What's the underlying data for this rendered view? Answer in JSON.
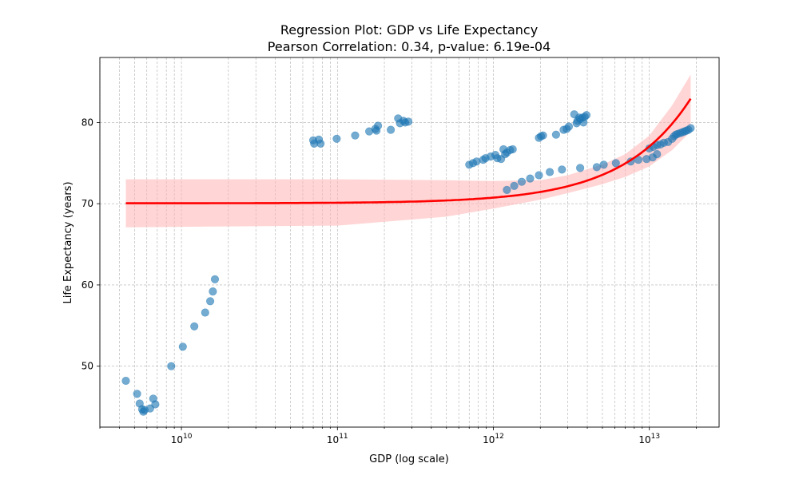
{
  "chart_data": {
    "type": "scatter",
    "title": "Regression Plot: GDP vs Life Expectancy",
    "subtitle": "Pearson Correlation: 0.34, p-value: 6.19e-04",
    "xlabel": "GDP (log scale)",
    "ylabel": "Life Expectancy (years)",
    "x_scale": "log",
    "xlim": [
      3000000000.0,
      28000000000000.0
    ],
    "ylim": [
      42.5,
      88
    ],
    "x_ticks": [
      {
        "value": 10000000000.0,
        "base": "10",
        "exp": "10"
      },
      {
        "value": 100000000000.0,
        "base": "10",
        "exp": "11"
      },
      {
        "value": 1000000000000.0,
        "base": "10",
        "exp": "12"
      },
      {
        "value": 10000000000000.0,
        "base": "10",
        "exp": "13"
      }
    ],
    "y_ticks": [
      {
        "value": 50,
        "label": "50"
      },
      {
        "value": 60,
        "label": "60"
      },
      {
        "value": 70,
        "label": "70"
      },
      {
        "value": 80,
        "label": "80"
      }
    ],
    "grid": true,
    "colors": {
      "points": "#1f77b4",
      "line": "#ff0000",
      "band": "#ffb3b3",
      "grid": "#b0b0b0"
    },
    "points": [
      [
        4400000000.0,
        48.2
      ],
      [
        5200000000.0,
        46.6
      ],
      [
        5400000000.0,
        45.4
      ],
      [
        5600000000.0,
        44.7
      ],
      [
        5700000000.0,
        44.4
      ],
      [
        5800000000.0,
        44.6
      ],
      [
        6300000000.0,
        44.8
      ],
      [
        6600000000.0,
        46.0
      ],
      [
        6800000000.0,
        45.3
      ],
      [
        8600000000.0,
        50.0
      ],
      [
        10200000000.0,
        52.4
      ],
      [
        12100000000.0,
        54.9
      ],
      [
        14200000000.0,
        56.6
      ],
      [
        15300000000.0,
        58.0
      ],
      [
        15900000000.0,
        59.2
      ],
      [
        16400000000.0,
        60.7
      ],
      [
        70000000000.0,
        77.8
      ],
      [
        71000000000.0,
        77.4
      ],
      [
        76000000000.0,
        77.9
      ],
      [
        78000000000.0,
        77.4
      ],
      [
        99000000000.0,
        78.0
      ],
      [
        130000000000.0,
        78.4
      ],
      [
        160000000000.0,
        78.9
      ],
      [
        175000000000.0,
        79.2
      ],
      [
        178000000000.0,
        79.0
      ],
      [
        182000000000.0,
        79.6
      ],
      [
        220000000000.0,
        79.1
      ],
      [
        245000000000.0,
        80.5
      ],
      [
        252000000000.0,
        79.9
      ],
      [
        265000000000.0,
        80.2
      ],
      [
        272000000000.0,
        80.0
      ],
      [
        285000000000.0,
        80.1
      ],
      [
        700000000000.0,
        74.8
      ],
      [
        740000000000.0,
        75.0
      ],
      [
        780000000000.0,
        75.2
      ],
      [
        860000000000.0,
        75.4
      ],
      [
        890000000000.0,
        75.6
      ],
      [
        960000000000.0,
        75.8
      ],
      [
        1030000000000.0,
        76.0
      ],
      [
        1060000000000.0,
        75.6
      ],
      [
        1120000000000.0,
        75.5
      ],
      [
        1160000000000.0,
        76.7
      ],
      [
        1190000000000.0,
        76.1
      ],
      [
        1220000000000.0,
        76.3
      ],
      [
        1280000000000.0,
        76.6
      ],
      [
        1330000000000.0,
        76.7
      ],
      [
        1220000000000.0,
        71.7
      ],
      [
        1360000000000.0,
        72.2
      ],
      [
        1520000000000.0,
        72.7
      ],
      [
        1720000000000.0,
        73.1
      ],
      [
        1960000000000.0,
        73.5
      ],
      [
        2300000000000.0,
        73.9
      ],
      [
        2750000000000.0,
        74.2
      ],
      [
        3600000000000.0,
        74.4
      ],
      [
        4600000000000.0,
        74.5
      ],
      [
        5100000000000.0,
        74.8
      ],
      [
        6100000000000.0,
        75.0
      ],
      [
        7600000000000.0,
        75.2
      ],
      [
        8500000000000.0,
        75.4
      ],
      [
        9600000000000.0,
        75.5
      ],
      [
        10500000000000.0,
        75.7
      ],
      [
        11200000000000.0,
        76.1
      ],
      [
        1960000000000.0,
        78.1
      ],
      [
        2020000000000.0,
        78.3
      ],
      [
        2080000000000.0,
        78.4
      ],
      [
        2520000000000.0,
        78.5
      ],
      [
        2820000000000.0,
        79.1
      ],
      [
        2950000000000.0,
        79.2
      ],
      [
        3050000000000.0,
        79.5
      ],
      [
        3300000000000.0,
        81.0
      ],
      [
        3420000000000.0,
        79.9
      ],
      [
        3460000000000.0,
        80.2
      ],
      [
        3550000000000.0,
        80.6
      ],
      [
        3600000000000.0,
        80.4
      ],
      [
        3720000000000.0,
        80.6
      ],
      [
        3780000000000.0,
        80.0
      ],
      [
        3850000000000.0,
        80.7
      ],
      [
        3950000000000.0,
        80.9
      ],
      [
        10000000000000.0,
        76.8
      ],
      [
        10600000000000.0,
        77.0
      ],
      [
        11200000000000.0,
        77.2
      ],
      [
        11800000000000.0,
        77.3
      ],
      [
        12400000000000.0,
        77.5
      ],
      [
        13200000000000.0,
        77.6
      ],
      [
        14000000000000.0,
        78.0
      ],
      [
        14400000000000.0,
        78.3
      ],
      [
        14800000000000.0,
        78.5
      ],
      [
        15200000000000.0,
        78.6
      ],
      [
        15800000000000.0,
        78.7
      ],
      [
        16300000000000.0,
        78.8
      ],
      [
        16800000000000.0,
        78.9
      ],
      [
        17300000000000.0,
        79.0
      ],
      [
        17800000000000.0,
        79.1
      ],
      [
        18400000000000.0,
        79.3
      ]
    ],
    "regression_line": {
      "x_range": [
        4400000000.0,
        18400000000000.0
      ],
      "intercept": 70.05,
      "slope": 7e-13
    },
    "confidence_band": [
      [
        4400000000.0,
        67.1,
        73.0
      ],
      [
        100000000000.0,
        67.3,
        73.0
      ],
      [
        500000000000.0,
        68.4,
        72.9
      ],
      [
        1000000000000.0,
        69.4,
        72.8
      ],
      [
        2000000000000.0,
        70.5,
        72.9
      ],
      [
        3000000000000.0,
        71.3,
        73.5
      ],
      [
        5000000000000.0,
        72.4,
        74.8
      ],
      [
        7000000000000.0,
        73.3,
        76.1
      ],
      [
        10000000000000.0,
        74.6,
        78.4
      ],
      [
        14000000000000.0,
        76.6,
        82.1
      ],
      [
        18400000000000.0,
        78.9,
        85.9
      ]
    ]
  }
}
